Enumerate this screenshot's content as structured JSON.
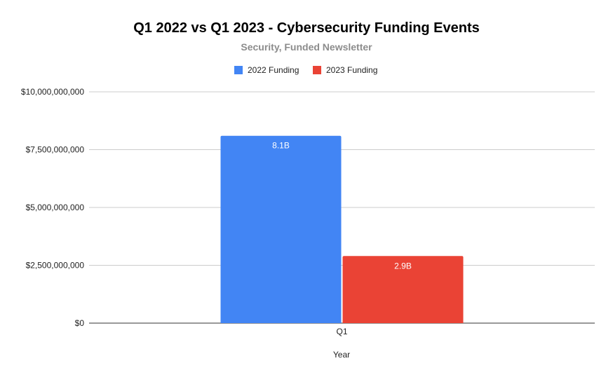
{
  "chart_data": {
    "type": "bar",
    "title": "Q1 2022 vs Q1 2023 - Cybersecurity Funding Events",
    "subtitle": "Security, Funded Newsletter",
    "xlabel": "Year",
    "ylabel": "",
    "categories": [
      "Q1"
    ],
    "series": [
      {
        "name": "2022 Funding",
        "color": "#4285f4",
        "values": [
          8100000000
        ],
        "labels": [
          "8.1B"
        ]
      },
      {
        "name": "2023 Funding",
        "color": "#ea4335",
        "values": [
          2900000000
        ],
        "labels": [
          "2.9B"
        ]
      }
    ],
    "ylim": [
      0,
      10000000000
    ],
    "yticks": [
      {
        "value": 0,
        "label": "$0"
      },
      {
        "value": 2500000000,
        "label": "$2,500,000,000"
      },
      {
        "value": 5000000000,
        "label": "$5,000,000,000"
      },
      {
        "value": 7500000000,
        "label": "$7,500,000,000"
      },
      {
        "value": 10000000000,
        "label": "$10,000,000,000"
      }
    ],
    "grid": true,
    "legend_position": "top"
  }
}
